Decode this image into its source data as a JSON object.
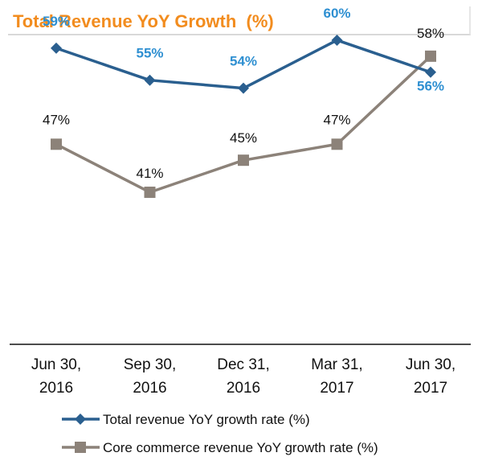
{
  "chart_data": {
    "type": "line",
    "title": "Total Revenue YoY Growth  (%)",
    "categories": [
      [
        "Jun 30,",
        "2016"
      ],
      [
        "Sep 30,",
        "2016"
      ],
      [
        "Dec 31,",
        "2016"
      ],
      [
        "Mar 31,",
        "2017"
      ],
      [
        "Jun 30,",
        "2017"
      ]
    ],
    "series": [
      {
        "name": "Total revenue YoY growth rate (%)",
        "marker": "diamond",
        "color": "#2a5f8f",
        "label_color": "#2e8fd1",
        "values": [
          59,
          55,
          54,
          60,
          56
        ],
        "labels": [
          "59%",
          "55%",
          "54%",
          "60%",
          "56%"
        ]
      },
      {
        "name": "Core commerce revenue YoY growth rate (%)",
        "marker": "square",
        "color": "#8c8279",
        "label_color": "#111111",
        "values": [
          47,
          41,
          45,
          47,
          58
        ],
        "labels": [
          "47%",
          "41%",
          "45%",
          "47%",
          "58%"
        ]
      }
    ],
    "ylim": [
      22,
      61
    ],
    "xlabel": "",
    "ylabel": "",
    "grid": false,
    "legend_position": "bottom"
  },
  "colors": {
    "title": "#f28c1e",
    "axis": "#111111"
  }
}
